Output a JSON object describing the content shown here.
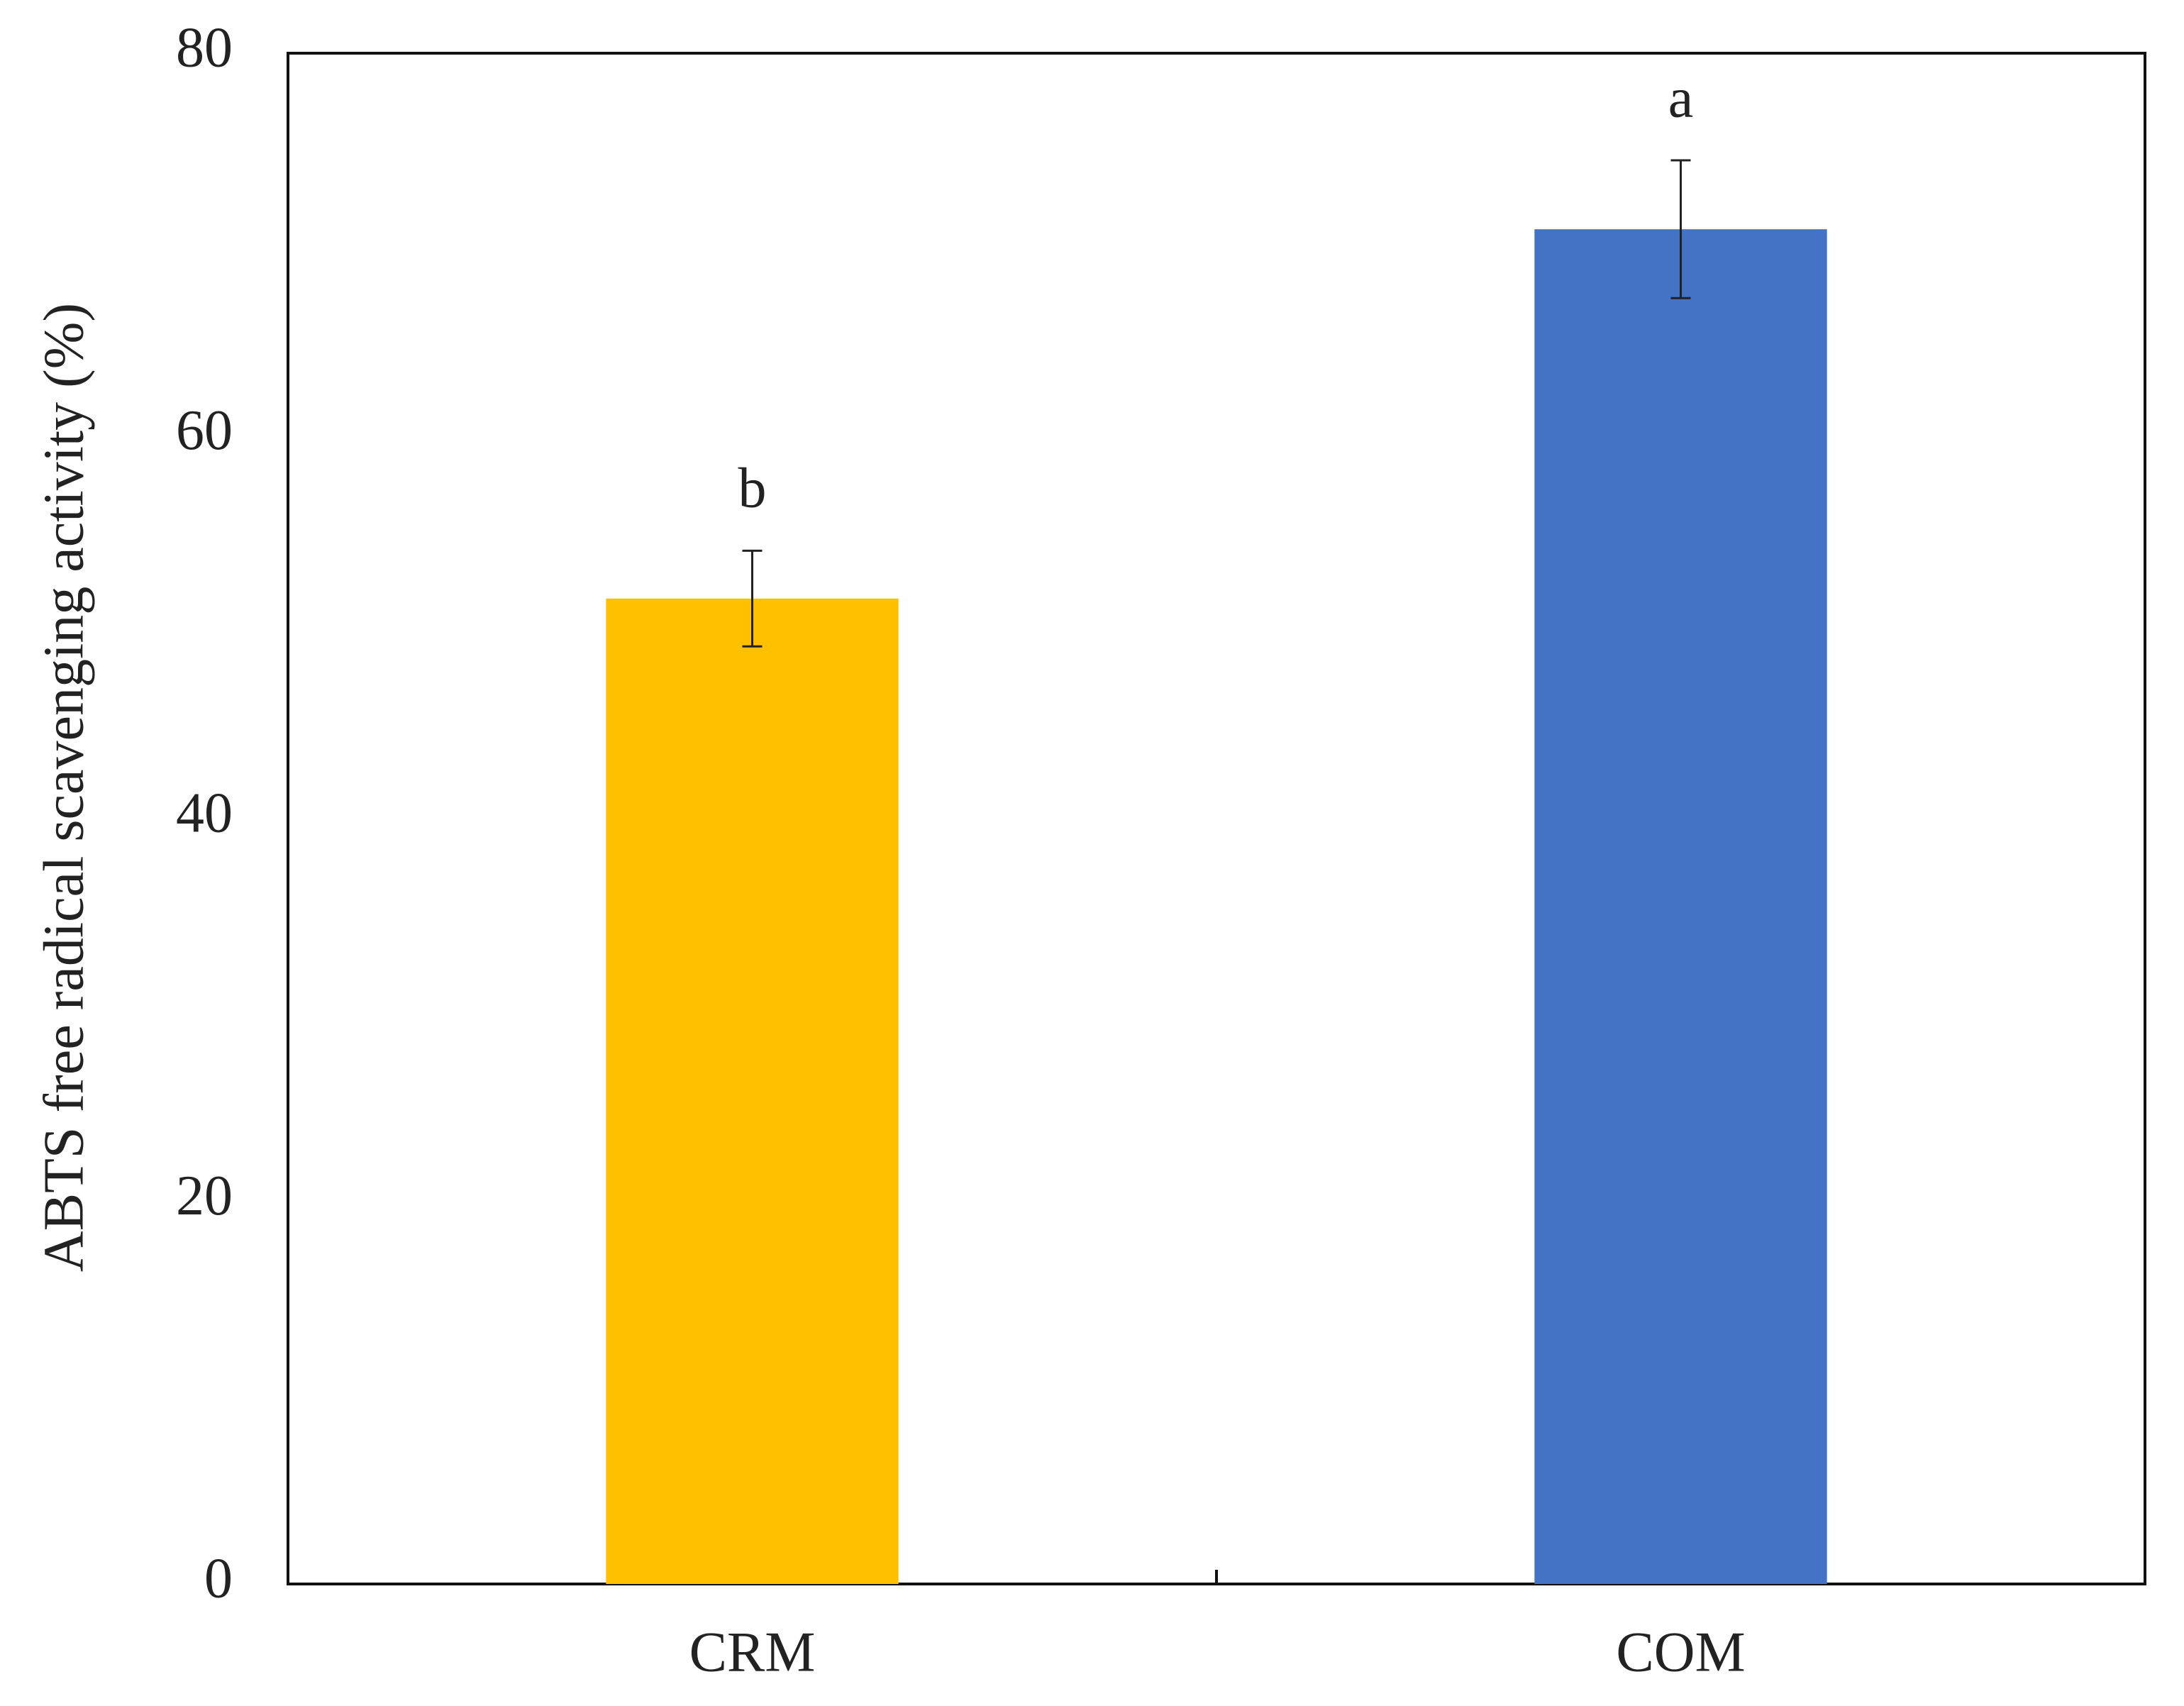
{
  "chart_data": {
    "type": "bar",
    "y_label": "ABTS free radical scavenging activity (%)",
    "categories": [
      "CRM",
      "COM"
    ],
    "values": [
      51.5,
      70.8
    ],
    "errors": [
      2.5,
      3.6
    ],
    "annotations": [
      "b",
      "a"
    ],
    "colors": [
      "#FFC000",
      "#4472C4"
    ],
    "ylim": [
      0,
      80
    ],
    "yticks": [
      0,
      20,
      40,
      60,
      80
    ],
    "grid": false
  }
}
